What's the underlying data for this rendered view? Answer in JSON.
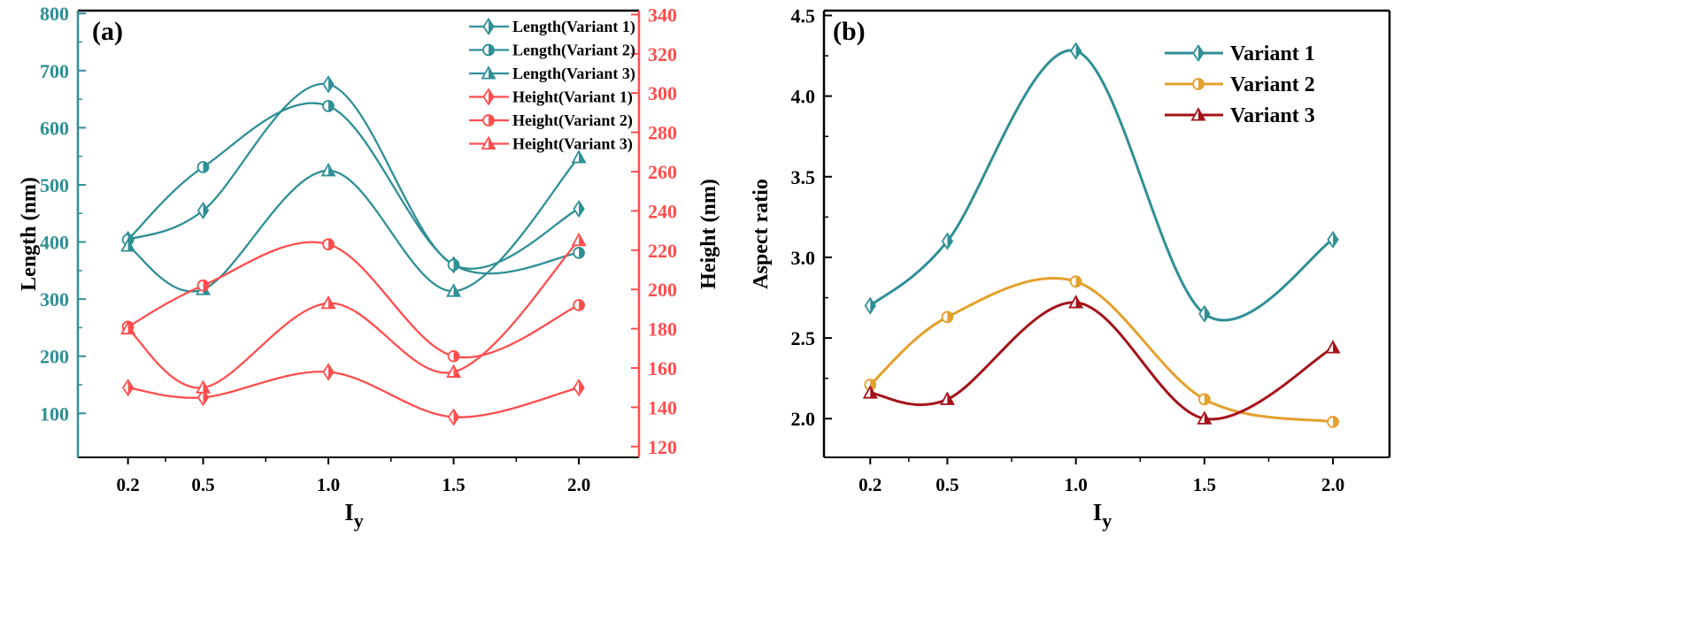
{
  "colors": {
    "teal": "#2f8f96",
    "red": "#ff4d4d",
    "orange": "#e3a02c",
    "darkred": "#a5121a",
    "axis": "#000000"
  },
  "chart_data": [
    {
      "type": "line",
      "panel_label": "(a)",
      "xlabel": "I",
      "xlabel_sub": "y",
      "ylabel": "Length (nm)",
      "ylabel_right": "Height (nm)",
      "x": [
        0.2,
        0.5,
        1.0,
        1.5,
        2.0
      ],
      "x_ticks": [
        "0.2",
        "0.5",
        "1.0",
        "1.5",
        "2.0"
      ],
      "xlim": [
        0.0,
        2.24
      ],
      "ylim": [
        23,
        805
      ],
      "ylim_right": [
        114.5,
        342
      ],
      "y_ticks": [
        100,
        200,
        300,
        400,
        500,
        600,
        700,
        800
      ],
      "y_ticks_right": [
        120,
        140,
        160,
        180,
        200,
        220,
        240,
        260,
        280,
        300,
        320,
        340
      ],
      "legend_position": "top-right",
      "series": [
        {
          "name": "Length(Variant 1)",
          "axis": "left",
          "color": "teal",
          "marker": "diamond",
          "values": [
            404,
            455,
            676,
            360,
            458
          ]
        },
        {
          "name": "Length(Variant 2)",
          "axis": "left",
          "color": "teal",
          "marker": "circle",
          "values": [
            404,
            531,
            638,
            360,
            381
          ]
        },
        {
          "name": "Length(Variant 3)",
          "axis": "left",
          "color": "teal",
          "marker": "triangle",
          "values": [
            393,
            317,
            525,
            314,
            548
          ]
        },
        {
          "name": "Height(Variant 1)",
          "axis": "right",
          "color": "red",
          "marker": "diamond",
          "values": [
            150,
            145,
            158,
            135,
            150
          ]
        },
        {
          "name": "Height(Variant 2)",
          "axis": "right",
          "color": "red",
          "marker": "circle",
          "values": [
            181,
            202,
            223,
            166,
            192
          ]
        },
        {
          "name": "Height(Variant 3)",
          "axis": "right",
          "color": "red",
          "marker": "triangle",
          "values": [
            180,
            150,
            193,
            158,
            225
          ]
        }
      ]
    },
    {
      "type": "line",
      "panel_label": "(b)",
      "xlabel": "I",
      "xlabel_sub": "y",
      "ylabel": "Aspect ratio",
      "x": [
        0.2,
        0.5,
        1.0,
        1.5,
        2.0
      ],
      "x_ticks": [
        "0.2",
        "0.5",
        "1.0",
        "1.5",
        "2.0"
      ],
      "xlim": [
        0.02,
        2.22
      ],
      "ylim": [
        1.76,
        4.53
      ],
      "y_ticks": [
        "2.0",
        "2.5",
        "3.0",
        "3.5",
        "4.0",
        "4.5"
      ],
      "legend_position": "top-right",
      "series": [
        {
          "name": "Variant 1",
          "color": "teal",
          "marker": "diamond",
          "values": [
            2.7,
            3.1,
            4.28,
            2.65,
            3.11
          ]
        },
        {
          "name": "Variant 2",
          "color": "orange",
          "marker": "circle",
          "values": [
            2.21,
            2.63,
            2.85,
            2.12,
            1.98
          ]
        },
        {
          "name": "Variant 3",
          "color": "darkred",
          "marker": "triangle",
          "values": [
            2.16,
            2.12,
            2.72,
            2.0,
            2.44
          ]
        }
      ]
    }
  ]
}
